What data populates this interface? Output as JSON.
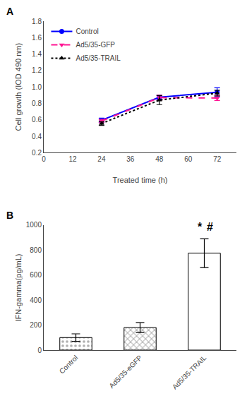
{
  "chart_data": [
    {
      "type": "line",
      "title": "A",
      "xlabel": "Treated time (h)",
      "ylabel": "Cell growth (IOD 490 nm)",
      "x": [
        24,
        48,
        72
      ],
      "series": [
        {
          "name": "Control",
          "color": "#0000FF",
          "values": [
            0.595,
            0.875,
            0.935
          ],
          "errors": [
            0.025,
            0.025,
            0.055
          ],
          "marker": "circle",
          "line_style": "solid"
        },
        {
          "name": "Ad5/35-GFP",
          "color": "#FF1493",
          "values": [
            0.585,
            0.87,
            0.865
          ],
          "errors": [
            0.02,
            0.03,
            0.03
          ],
          "marker": "triangle-down",
          "line_style": "dash"
        },
        {
          "name": "Ad5/35-TRAIL",
          "color": "#000000",
          "values": [
            0.555,
            0.84,
            0.925
          ],
          "errors": [
            0.022,
            0.055,
            0.035
          ],
          "marker": "triangle-up",
          "line_style": "dot"
        }
      ],
      "xlim": [
        0,
        80
      ],
      "ylim": [
        0.2,
        1.8
      ],
      "xticks": [
        0,
        12,
        24,
        36,
        48,
        60,
        72
      ],
      "yticks": [
        0.2,
        0.4,
        0.6,
        0.8,
        {
          "value": 1.0,
          "label": "1.0"
        },
        1.2,
        1.4,
        1.6,
        1.8
      ],
      "legend": "upper left",
      "grid": false
    },
    {
      "type": "bar",
      "title": "B",
      "ylabel": "IFN-gamma(pg/mL)",
      "categories": [
        "Control",
        "Ad5/35-eGFP",
        "Ad5/35-TRAIL"
      ],
      "values": [
        100,
        180,
        775
      ],
      "errors": [
        30,
        40,
        115
      ],
      "colors": [
        "#b0b0b0",
        "#b0b0b0",
        "#ffffff"
      ],
      "ylim": [
        0,
        1000
      ],
      "yticks": [
        0,
        200,
        400,
        600,
        800,
        1000
      ],
      "annotations": [
        {
          "text": "*",
          "x": "Ad5/35-TRAIL"
        },
        {
          "text": "#",
          "x": "Ad5/35-TRAIL"
        }
      ],
      "grid": false
    }
  ]
}
